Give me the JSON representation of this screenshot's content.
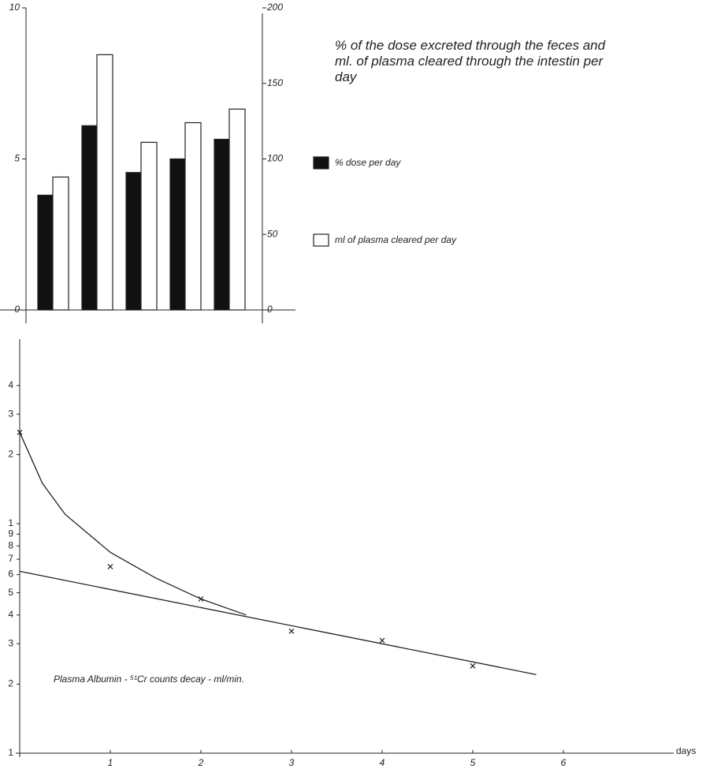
{
  "chart_data": [
    {
      "type": "bar",
      "title": "% of the dose excreted through the feces and ml. of plasma cleared through the intestin per day",
      "categories": [
        null,
        null,
        null,
        null,
        null
      ],
      "series": [
        {
          "name": "% dose per day",
          "color": "#111111",
          "values": [
            3.8,
            6.1,
            4.55,
            5.0,
            5.65
          ]
        },
        {
          "name": "ml of plasma cleared per day",
          "color": "#ffffff",
          "axis": "y2",
          "values": [
            88,
            169,
            111,
            124,
            133
          ]
        }
      ],
      "ylim": [
        0,
        10
      ],
      "yticks": [
        0,
        5,
        10
      ],
      "y2lim": [
        0,
        200
      ],
      "y2ticks": [
        0,
        50,
        100,
        150,
        200
      ]
    },
    {
      "type": "scatter",
      "annotation": "Plasma Albumin - ⁵¹Cr counts decay - ml/min.",
      "x_label": "days",
      "series": [
        {
          "x": [
            0,
            1,
            2,
            3,
            4,
            5
          ],
          "values": [
            25,
            6.5,
            4.7,
            3.4,
            3.1,
            2.4
          ]
        },
        {
          "type": "line",
          "x": [
            0,
            0.25,
            0.5,
            1,
            1.5,
            2,
            2.5
          ],
          "values": [
            25,
            15,
            11,
            7.5,
            5.8,
            4.7,
            4.0
          ]
        },
        {
          "type": "line",
          "x": [
            0,
            5.7
          ],
          "values": [
            6.2,
            2.2
          ]
        }
      ],
      "xlim": [
        0,
        7.2
      ],
      "xticks": [
        1,
        2,
        3,
        4,
        5,
        6
      ],
      "ylim": [
        1,
        64
      ],
      "log_y": true,
      "yticks": [
        1,
        2,
        3,
        4,
        5,
        6,
        7,
        8,
        9,
        {
          "value": 10,
          "label": "1"
        },
        {
          "value": 20,
          "label": "2"
        },
        {
          "value": 30,
          "label": "3"
        },
        {
          "value": 40,
          "label": "4"
        }
      ]
    }
  ]
}
